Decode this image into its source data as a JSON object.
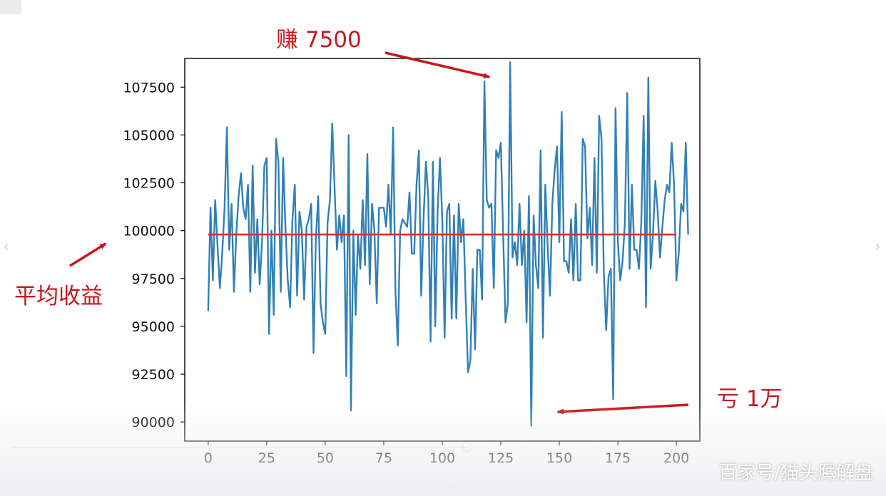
{
  "annotations": {
    "top_label": "赚 7500",
    "bottom_label": "亏 1万",
    "left_label": "平均收益"
  },
  "watermark": "百家号/猫头鹰解盘",
  "nav": {
    "left_icon": "chevron-left-icon",
    "right_icon": "chevron-right-icon"
  },
  "colors": {
    "series": "#3180b5",
    "mean_line": "#d4342a",
    "annotation": "#c8171e"
  },
  "chart_data": {
    "type": "line",
    "xlim": [
      -10,
      210
    ],
    "ylim": [
      89000,
      109000
    ],
    "x_ticks": [
      0,
      25,
      50,
      75,
      100,
      125,
      150,
      175,
      200
    ],
    "y_ticks": [
      90000,
      92500,
      95000,
      97500,
      100000,
      102500,
      105000,
      107500
    ],
    "x_tick_labels": [
      "0",
      "25",
      "50",
      "75",
      "100",
      "125",
      "150",
      "175",
      "200"
    ],
    "y_tick_labels": [
      "90000",
      "92500",
      "95000",
      "97500",
      "100000",
      "102500",
      "105000",
      "107500"
    ],
    "grid": false,
    "series": [
      {
        "values": [
          95800,
          101200,
          97400,
          101600,
          99200,
          97000,
          98800,
          101200,
          105400,
          99000,
          101400,
          96800,
          99800,
          101800,
          103000,
          101200,
          100600,
          102400,
          96800,
          103400,
          97800,
          100600,
          97200,
          99400,
          103400,
          103800,
          94600,
          100000,
          95600,
          104800,
          103600,
          96800,
          103800,
          100200,
          97400,
          96000,
          100600,
          102400,
          96600,
          101000,
          100000,
          96400,
          100200,
          100600,
          101400,
          93600,
          99600,
          101800,
          96200,
          95200,
          94600,
          100400,
          101600,
          105600,
          102200,
          99000,
          100800,
          99400,
          100800,
          92400,
          105000,
          90600,
          100000,
          95600,
          99800,
          98000,
          101600,
          98200,
          104000,
          97200,
          101400,
          100000,
          96200,
          101200,
          101200,
          101200,
          100200,
          102400,
          99800,
          105400,
          96800,
          94000,
          100000,
          100600,
          100400,
          100200,
          102000,
          98800,
          98800,
          102400,
          104200,
          96600,
          100600,
          103600,
          101800,
          94200,
          103600,
          95000,
          101000,
          103800,
          100600,
          94400,
          101000,
          101400,
          95400,
          100800,
          95400,
          101400,
          99400,
          100600,
          96400,
          92600,
          93200,
          98000,
          93800,
          99000,
          99000,
          96400,
          107800,
          101600,
          101200,
          101400,
          97000,
          104200,
          103800,
          104600,
          99800,
          95200,
          96200,
          108800,
          98600,
          99400,
          98200,
          101400,
          98200,
          100000,
          95200,
          101800,
          89800,
          100800,
          98200,
          97000,
          104200,
          94400,
          102400,
          99200,
          96600,
          101400,
          103200,
          104400,
          99400,
          106200,
          98400,
          98400,
          97800,
          100600,
          97400,
          101400,
          97400,
          97400,
          104800,
          104400,
          99600,
          101200,
          98200,
          103800,
          97800,
          106000,
          104800,
          97800,
          94800,
          97600,
          98000,
          91200,
          106400,
          99400,
          97400,
          98400,
          100400,
          107200,
          98000,
          102400,
          99000,
          99000,
          98000,
          100400,
          106000,
          96000,
          108000,
          98000,
          99800,
          102600,
          101000,
          98600,
          100200,
          101600,
          102400,
          102000,
          104600,
          102400,
          97400,
          98800,
          101400,
          101000,
          104600,
          99800
        ]
      },
      {
        "values": [
          99800,
          99800
        ]
      }
    ],
    "mean_line_x": [
      0,
      200
    ]
  }
}
